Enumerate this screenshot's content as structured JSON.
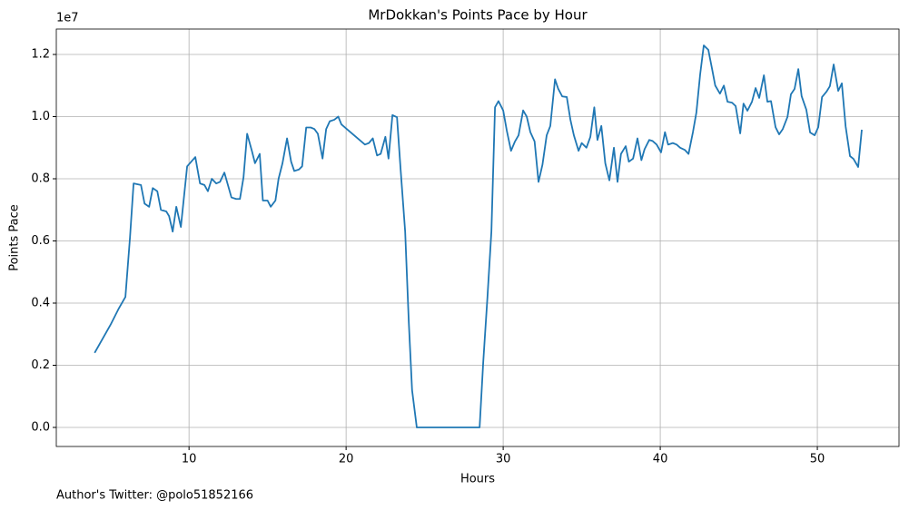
{
  "chart_data": {
    "type": "line",
    "title": "MrDokkan's Points Pace by Hour",
    "x_label": "Hours",
    "y_label": "Points Pace",
    "y_offset_label": "1e7",
    "annotation": "Author's Twitter: @polo51852166",
    "color": "#1f77b4",
    "grid": true,
    "xlim": [
      1.55,
      55.2
    ],
    "xticks": [
      10,
      20,
      30,
      40,
      50
    ],
    "ylim": [
      -0.0613,
      1.2818
    ],
    "yticks": [
      {
        "value": 0,
        "label": "0.0"
      },
      0.2,
      0.4,
      0.6,
      0.8,
      {
        "value": 1,
        "label": "1.0"
      },
      1.2
    ],
    "x": [
      3.99,
      5.0,
      5.5,
      5.95,
      6.24,
      6.47,
      6.94,
      7.17,
      7.46,
      7.69,
      7.98,
      8.21,
      8.55,
      8.73,
      8.96,
      9.19,
      9.48,
      9.88,
      10.4,
      10.7,
      10.98,
      11.2,
      11.45,
      11.73,
      11.97,
      12.25,
      12.7,
      13.0,
      13.24,
      13.47,
      13.7,
      14.0,
      14.2,
      14.5,
      14.7,
      15.0,
      15.2,
      15.5,
      15.7,
      15.95,
      16.24,
      16.5,
      16.7,
      17.0,
      17.2,
      17.46,
      17.75,
      17.98,
      18.2,
      18.5,
      18.73,
      18.96,
      19.25,
      19.5,
      19.7,
      21.2,
      21.45,
      21.7,
      21.97,
      22.2,
      22.5,
      22.7,
      22.95,
      23.24,
      23.47,
      23.76,
      23.99,
      24.2,
      24.5,
      28.5,
      28.73,
      29.0,
      29.25,
      29.48,
      29.7,
      30.0,
      30.23,
      30.5,
      30.75,
      30.98,
      31.27,
      31.5,
      31.73,
      32.0,
      32.25,
      32.5,
      32.77,
      33.0,
      33.3,
      33.5,
      33.76,
      34.05,
      34.28,
      34.5,
      34.8,
      35.0,
      35.3,
      35.55,
      35.8,
      36.0,
      36.25,
      36.5,
      36.76,
      37.05,
      37.28,
      37.5,
      37.8,
      38.0,
      38.27,
      38.55,
      38.8,
      39.0,
      39.3,
      39.5,
      39.77,
      40.05,
      40.3,
      40.5,
      40.8,
      41.04,
      41.27,
      41.56,
      41.8,
      42.08,
      42.3,
      42.54,
      42.77,
      43.06,
      43.3,
      43.5,
      43.8,
      44.05,
      44.28,
      44.57,
      44.8,
      45.09,
      45.3,
      45.55,
      45.84,
      46.07,
      46.3,
      46.6,
      46.82,
      47.05,
      47.34,
      47.57,
      47.8,
      48.1,
      48.32,
      48.55,
      48.79,
      49.0,
      49.3,
      49.54,
      49.83,
      50.06,
      50.3,
      50.58,
      50.8,
      51.04,
      51.33,
      51.56,
      51.8,
      52.08,
      52.3,
      52.6,
      52.83
    ],
    "values": [
      0.24,
      0.33,
      0.38,
      0.42,
      0.61,
      0.785,
      0.78,
      0.72,
      0.71,
      0.77,
      0.76,
      0.7,
      0.695,
      0.68,
      0.63,
      0.71,
      0.645,
      0.84,
      0.87,
      0.785,
      0.78,
      0.76,
      0.8,
      0.785,
      0.79,
      0.82,
      0.74,
      0.735,
      0.735,
      0.805,
      0.945,
      0.89,
      0.85,
      0.88,
      0.73,
      0.73,
      0.71,
      0.73,
      0.8,
      0.85,
      0.93,
      0.855,
      0.825,
      0.83,
      0.84,
      0.965,
      0.965,
      0.96,
      0.945,
      0.865,
      0.96,
      0.985,
      0.99,
      1.0,
      0.975,
      0.91,
      0.915,
      0.93,
      0.875,
      0.88,
      0.935,
      0.865,
      1.005,
      0.998,
      0.83,
      0.63,
      0.34,
      0.12,
      0,
      0,
      0.21,
      0.42,
      0.63,
      1.03,
      1.05,
      1.02,
      0.955,
      0.89,
      0.92,
      0.94,
      1.02,
      1.0,
      0.95,
      0.92,
      0.79,
      0.845,
      0.94,
      0.97,
      1.12,
      1.09,
      1.065,
      1.063,
      0.99,
      0.94,
      0.89,
      0.915,
      0.9,
      0.935,
      1.03,
      0.925,
      0.97,
      0.85,
      0.795,
      0.9,
      0.79,
      0.88,
      0.905,
      0.855,
      0.865,
      0.93,
      0.86,
      0.895,
      0.925,
      0.922,
      0.91,
      0.885,
      0.95,
      0.91,
      0.915,
      0.91,
      0.9,
      0.893,
      0.88,
      0.95,
      1.013,
      1.136,
      1.229,
      1.215,
      1.153,
      1.1,
      1.074,
      1.1,
      1.048,
      1.045,
      1.034,
      0.946,
      1.042,
      1.019,
      1.048,
      1.092,
      1.06,
      1.133,
      1.048,
      1.05,
      0.966,
      0.943,
      0.96,
      0.999,
      1.072,
      1.089,
      1.153,
      1.066,
      1.022,
      0.949,
      0.94,
      0.966,
      1.063,
      1.08,
      1.098,
      1.168,
      1.083,
      1.107,
      0.969,
      0.873,
      0.864,
      0.838,
      0.958
    ]
  }
}
